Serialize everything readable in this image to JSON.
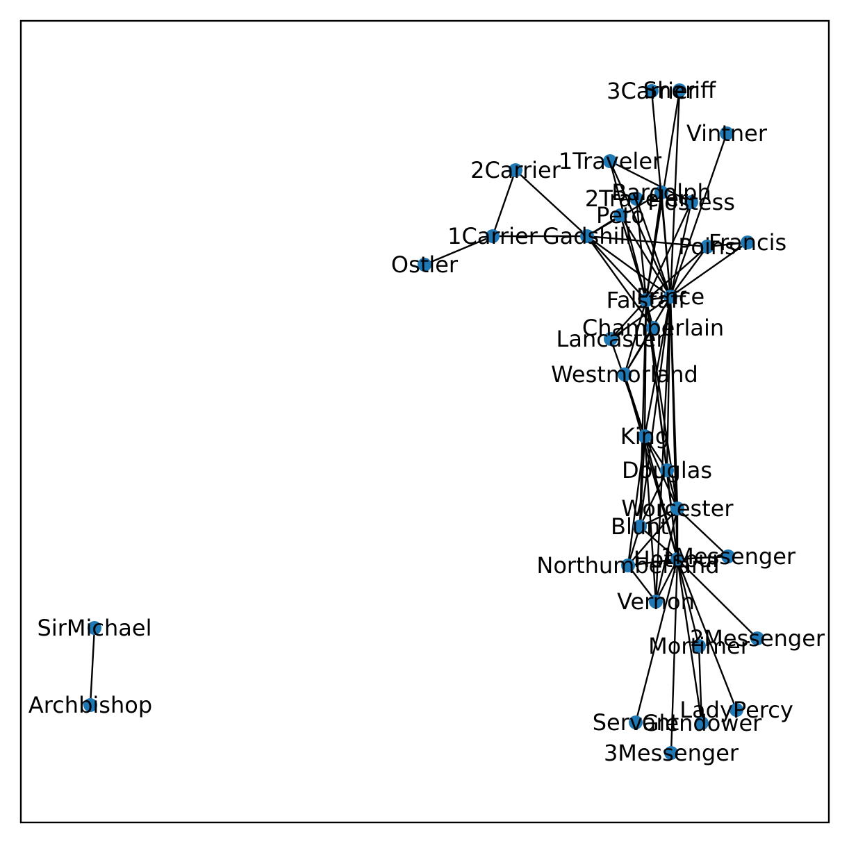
{
  "colors": {
    "node": "#1f77b4",
    "edge": "#000000",
    "frame": "#000000"
  },
  "nodes": [
    {
      "id": "3Carrier",
      "label": "3Carrier"
    },
    {
      "id": "Sheriff",
      "label": "Sheriff"
    },
    {
      "id": "Vintner",
      "label": "Vintner"
    },
    {
      "id": "1Traveler",
      "label": "1Traveler"
    },
    {
      "id": "2Carrier",
      "label": "2Carrier"
    },
    {
      "id": "Bardolph",
      "label": "Bardolph"
    },
    {
      "id": "2Traveler",
      "label": "2Traveler"
    },
    {
      "id": "Hostess",
      "label": "Hostess"
    },
    {
      "id": "Peto",
      "label": "Peto"
    },
    {
      "id": "1Carrier",
      "label": "1Carrier"
    },
    {
      "id": "Gadshill",
      "label": "Gadshill"
    },
    {
      "id": "Poins",
      "label": "Poins"
    },
    {
      "id": "Francis",
      "label": "Francis"
    },
    {
      "id": "Ostler",
      "label": "Ostler"
    },
    {
      "id": "Prince",
      "label": "Prince"
    },
    {
      "id": "Falstaff",
      "label": "Falstaff"
    },
    {
      "id": "Chamberlain",
      "label": "Chamberlain"
    },
    {
      "id": "Lancaster",
      "label": "Lancaster"
    },
    {
      "id": "Westmorland",
      "label": "Westmorland"
    },
    {
      "id": "King",
      "label": "King"
    },
    {
      "id": "Douglas",
      "label": "Douglas"
    },
    {
      "id": "Worcester",
      "label": "Worcester"
    },
    {
      "id": "Blunt",
      "label": "Blunt"
    },
    {
      "id": "Hotspur",
      "label": "Hotspur"
    },
    {
      "id": "1Messenger",
      "label": "1Messenger"
    },
    {
      "id": "Northumberland",
      "label": "Northumberland"
    },
    {
      "id": "Vernon",
      "label": "Vernon"
    },
    {
      "id": "2Messenger",
      "label": "2Messenger"
    },
    {
      "id": "Mortimer",
      "label": "Mortimer"
    },
    {
      "id": "LadyPercy",
      "label": "LadyPercy"
    },
    {
      "id": "Servant",
      "label": "Servant"
    },
    {
      "id": "Glendower",
      "label": "Glendower"
    },
    {
      "id": "3Messenger",
      "label": "3Messenger"
    },
    {
      "id": "SirMichael",
      "label": "SirMichael"
    },
    {
      "id": "Archbishop",
      "label": "Archbishop"
    }
  ],
  "edges": [
    [
      "2Carrier",
      "1Carrier"
    ],
    [
      "2Carrier",
      "Gadshill"
    ],
    [
      "1Carrier",
      "Ostler"
    ],
    [
      "1Carrier",
      "Gadshill"
    ],
    [
      "Gadshill",
      "Chamberlain"
    ],
    [
      "Gadshill",
      "Falstaff"
    ],
    [
      "Gadshill",
      "Prince"
    ],
    [
      "Gadshill",
      "Poins"
    ],
    [
      "Gadshill",
      "Peto"
    ],
    [
      "Gadshill",
      "Bardolph"
    ],
    [
      "1Traveler",
      "Falstaff"
    ],
    [
      "1Traveler",
      "Prince"
    ],
    [
      "1Traveler",
      "Hostess"
    ],
    [
      "2Traveler",
      "Falstaff"
    ],
    [
      "2Traveler",
      "Prince"
    ],
    [
      "3Carrier",
      "Prince"
    ],
    [
      "Sheriff",
      "Prince"
    ],
    [
      "Sheriff",
      "Falstaff"
    ],
    [
      "Vintner",
      "Prince"
    ],
    [
      "Francis",
      "Prince"
    ],
    [
      "Francis",
      "Poins"
    ],
    [
      "Prince",
      "Falstaff"
    ],
    [
      "Prince",
      "Poins"
    ],
    [
      "Prince",
      "Bardolph"
    ],
    [
      "Prince",
      "Peto"
    ],
    [
      "Prince",
      "Hostess"
    ],
    [
      "Prince",
      "King"
    ],
    [
      "Prince",
      "Lancaster"
    ],
    [
      "Prince",
      "Westmorland"
    ],
    [
      "Prince",
      "Hotspur"
    ],
    [
      "Prince",
      "Douglas"
    ],
    [
      "Prince",
      "Worcester"
    ],
    [
      "Prince",
      "Vernon"
    ],
    [
      "Prince",
      "Blunt"
    ],
    [
      "Falstaff",
      "Poins"
    ],
    [
      "Falstaff",
      "Bardolph"
    ],
    [
      "Falstaff",
      "Peto"
    ],
    [
      "Falstaff",
      "Hostess"
    ],
    [
      "Falstaff",
      "Chamberlain"
    ],
    [
      "Falstaff",
      "Lancaster"
    ],
    [
      "Falstaff",
      "Westmorland"
    ],
    [
      "Falstaff",
      "King"
    ],
    [
      "Falstaff",
      "Hotspur"
    ],
    [
      "Falstaff",
      "Douglas"
    ],
    [
      "Falstaff",
      "Worcester"
    ],
    [
      "Falstaff",
      "Blunt"
    ],
    [
      "Westmorland",
      "King"
    ],
    [
      "Westmorland",
      "Hotspur"
    ],
    [
      "Westmorland",
      "Chamberlain"
    ],
    [
      "King",
      "Douglas"
    ],
    [
      "King",
      "Worcester"
    ],
    [
      "King",
      "Blunt"
    ],
    [
      "King",
      "Hotspur"
    ],
    [
      "King",
      "Vernon"
    ],
    [
      "King",
      "Northumberland"
    ],
    [
      "King",
      "Lancaster"
    ],
    [
      "Douglas",
      "Hotspur"
    ],
    [
      "Douglas",
      "Worcester"
    ],
    [
      "Douglas",
      "Blunt"
    ],
    [
      "Worcester",
      "Hotspur"
    ],
    [
      "Worcester",
      "Northumberland"
    ],
    [
      "Worcester",
      "1Messenger"
    ],
    [
      "Worcester",
      "Vernon"
    ],
    [
      "Worcester",
      "Blunt"
    ],
    [
      "Blunt",
      "Hotspur"
    ],
    [
      "Blunt",
      "Northumberland"
    ],
    [
      "Hotspur",
      "1Messenger"
    ],
    [
      "Hotspur",
      "Northumberland"
    ],
    [
      "Hotspur",
      "Vernon"
    ],
    [
      "Hotspur",
      "2Messenger"
    ],
    [
      "Hotspur",
      "Mortimer"
    ],
    [
      "Hotspur",
      "LadyPercy"
    ],
    [
      "Hotspur",
      "Servant"
    ],
    [
      "Hotspur",
      "Glendower"
    ],
    [
      "Hotspur",
      "3Messenger"
    ],
    [
      "Mortimer",
      "Glendower"
    ],
    [
      "Vernon",
      "Northumberland"
    ],
    [
      "SirMichael",
      "Archbishop"
    ]
  ]
}
